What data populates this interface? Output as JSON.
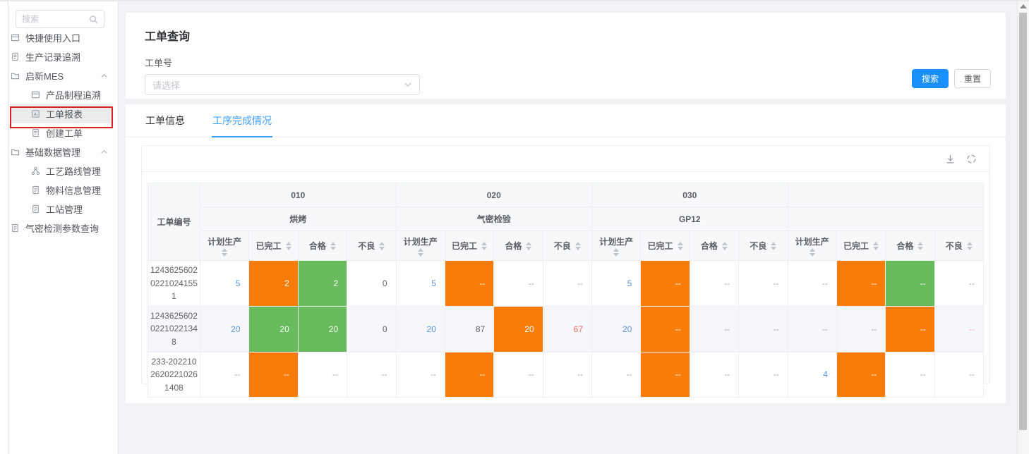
{
  "colors": {
    "orange": "#f87c0a",
    "green": "#67bb5c",
    "link_blue": "#5a94d8",
    "red": "#ef6a6a",
    "primary": "#1890ff",
    "active_tab": "#409eff",
    "annotation_red": "#dd1f1f"
  },
  "sidebar": {
    "search_placeholder": "搜索",
    "search_icon": "search-icon",
    "items": [
      {
        "id": "quick-access-entry",
        "label": "快捷使用入口",
        "level": 1,
        "icon": "window"
      },
      {
        "id": "production-record-trace",
        "label": "生产记录追溯",
        "level": 1,
        "icon": "document"
      },
      {
        "id": "qixin-mes",
        "label": "启新MES",
        "level": 1,
        "icon": "folder",
        "expandable": true
      },
      {
        "id": "product-process-trace",
        "label": "产品制程追溯",
        "level": 2,
        "icon": "window"
      },
      {
        "id": "work-order-report",
        "label": "工单报表",
        "level": 2,
        "icon": "report",
        "selected": true,
        "annotated": true
      },
      {
        "id": "create-work-order",
        "label": "创建工单",
        "level": 2,
        "icon": "document"
      },
      {
        "id": "basic-data-management",
        "label": "基础数据管理",
        "level": 1,
        "icon": "folder",
        "expandable": true
      },
      {
        "id": "process-route-management",
        "label": "工艺路线管理",
        "level": 2,
        "icon": "share"
      },
      {
        "id": "material-info-management",
        "label": "物料信息管理",
        "level": 2,
        "icon": "document"
      },
      {
        "id": "workstation-management",
        "label": "工站管理",
        "level": 2,
        "icon": "document"
      },
      {
        "id": "airtight-test-param-query",
        "label": "气密检测参数查询",
        "level": 1,
        "icon": "document"
      }
    ]
  },
  "query": {
    "title": "工单查询",
    "field_label": "工单号",
    "select_placeholder": "请选择",
    "select_icon": "chevron-down-icon",
    "search_button": "搜索",
    "reset_button": "重置"
  },
  "tabs": [
    {
      "id": "work-order-info",
      "label": "工单信息",
      "active": false
    },
    {
      "id": "process-completion",
      "label": "工序完成情况",
      "active": true
    }
  ],
  "toolbar": {
    "icons": [
      "download-icon",
      "refresh-icon"
    ]
  },
  "table": {
    "row_header": "工单编号",
    "groups": [
      {
        "code": "010",
        "name": "烘烤"
      },
      {
        "code": "020",
        "name": "气密检验"
      },
      {
        "code": "030",
        "name": "GP12"
      },
      {
        "code": "",
        "name": ""
      }
    ],
    "sub_columns": [
      "计划生产",
      "已完工",
      "合格",
      "不良"
    ],
    "rows": [
      {
        "order_no": "124362560202210241551",
        "striped": false,
        "cells": [
          {
            "v": "5",
            "fg": "blue"
          },
          {
            "v": "2",
            "bg": "orange"
          },
          {
            "v": "2",
            "bg": "green"
          },
          {
            "v": "0",
            "fg": "dark"
          },
          {
            "v": "5",
            "fg": "blue"
          },
          {
            "v": "--",
            "bg": "orange"
          },
          {
            "v": "--"
          },
          {
            "v": "--"
          },
          {
            "v": "5",
            "fg": "blue"
          },
          {
            "v": "--",
            "bg": "orange"
          },
          {
            "v": "--"
          },
          {
            "v": "--"
          },
          {
            "v": "--"
          },
          {
            "v": "--",
            "bg": "orange"
          },
          {
            "v": "--",
            "bg": "green"
          },
          {
            "v": "--"
          }
        ]
      },
      {
        "order_no": "124362560202210221348",
        "striped": true,
        "cells": [
          {
            "v": "20",
            "fg": "blue"
          },
          {
            "v": "20",
            "bg": "green"
          },
          {
            "v": "20",
            "bg": "green"
          },
          {
            "v": "0",
            "fg": "dark"
          },
          {
            "v": "20",
            "fg": "blue"
          },
          {
            "v": "87",
            "fg": "dark"
          },
          {
            "v": "20",
            "bg": "orange"
          },
          {
            "v": "67",
            "fg": "red"
          },
          {
            "v": "20",
            "fg": "blue"
          },
          {
            "v": "--",
            "bg": "orange"
          },
          {
            "v": "--"
          },
          {
            "v": "--"
          },
          {
            "v": "--"
          },
          {
            "v": "--"
          },
          {
            "v": "--",
            "bg": "orange"
          },
          {
            "v": "--",
            "fg": "redlight"
          }
        ]
      },
      {
        "order_no": "233-20221026202210261408",
        "striped": false,
        "cells": [
          {
            "v": "--"
          },
          {
            "v": "--",
            "bg": "orange"
          },
          {
            "v": "--"
          },
          {
            "v": "--"
          },
          {
            "v": "--"
          },
          {
            "v": "--",
            "bg": "orange"
          },
          {
            "v": "--"
          },
          {
            "v": "--"
          },
          {
            "v": "--"
          },
          {
            "v": "--",
            "bg": "orange"
          },
          {
            "v": "--"
          },
          {
            "v": "--"
          },
          {
            "v": "4",
            "fg": "blue"
          },
          {
            "v": "--",
            "bg": "orange"
          },
          {
            "v": "--"
          },
          {
            "v": "--"
          }
        ]
      }
    ]
  }
}
